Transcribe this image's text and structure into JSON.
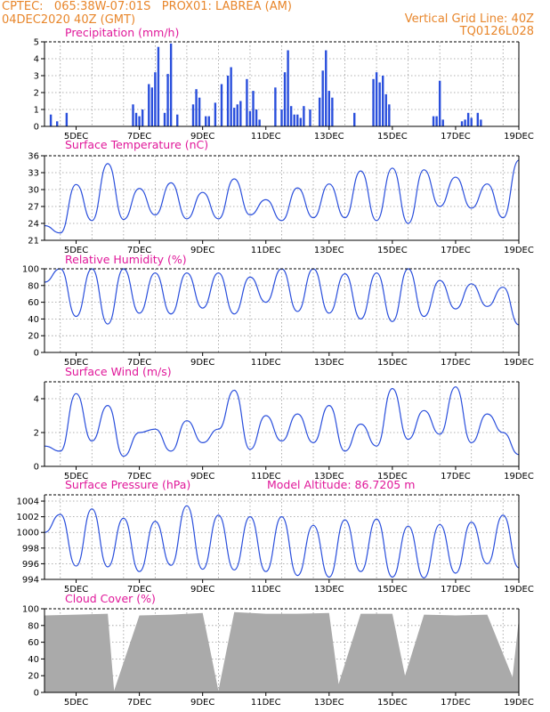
{
  "header": {
    "left_line1": "CPTEC:   065:38W-07:01S   PROX01: LABREA (AM)",
    "left_line2": "04DEC2020 40Z (GMT)",
    "right_line1": "Vertical Grid Line: 40Z",
    "right_line2": "TQ0126L028"
  },
  "colors": {
    "series": "#2a4fdc",
    "cloud": "#aaaaaa",
    "title": "#e0189a",
    "header": "#e8862b"
  },
  "x_tick_labels": [
    "5DEC",
    "7DEC",
    "9DEC",
    "11DEC",
    "13DEC",
    "15DEC",
    "17DEC",
    "19DEC"
  ],
  "chart_data": [
    {
      "id": "precip",
      "type": "bar",
      "title": "Precipitation (mm/h)",
      "ylim": [
        0,
        5
      ],
      "yticks": [
        0,
        1,
        2,
        3,
        4,
        5
      ],
      "x": [
        4.2,
        4.4,
        4.7,
        6.8,
        6.9,
        7.0,
        7.1,
        7.3,
        7.4,
        7.5,
        7.6,
        7.8,
        7.9,
        8.0,
        8.2,
        8.7,
        8.8,
        8.9,
        9.1,
        9.2,
        9.4,
        9.6,
        9.8,
        9.9,
        10.0,
        10.1,
        10.2,
        10.4,
        10.5,
        10.6,
        10.7,
        10.8,
        11.3,
        11.5,
        11.6,
        11.7,
        11.8,
        11.9,
        12.0,
        12.1,
        12.2,
        12.4,
        12.7,
        12.8,
        12.9,
        13.0,
        13.1,
        13.8,
        14.4,
        14.5,
        14.6,
        14.7,
        14.8,
        14.9,
        16.3,
        16.4,
        16.5,
        16.6,
        17.2,
        17.3,
        17.4,
        17.5,
        17.7,
        17.8
      ],
      "values": [
        0.7,
        0.3,
        0.8,
        1.3,
        0.8,
        0.6,
        1.0,
        2.5,
        2.3,
        3.2,
        4.7,
        0.8,
        3.1,
        4.9,
        0.7,
        1.3,
        2.2,
        1.7,
        0.6,
        0.6,
        1.4,
        2.5,
        3.0,
        3.5,
        1.1,
        1.3,
        1.5,
        2.8,
        0.9,
        2.1,
        1.0,
        0.4,
        2.3,
        1.0,
        3.2,
        4.5,
        1.2,
        0.7,
        0.7,
        0.5,
        1.2,
        1.0,
        1.7,
        3.3,
        4.5,
        2.1,
        1.7,
        0.8,
        2.8,
        3.2,
        2.6,
        3.0,
        1.9,
        1.3,
        0.6,
        0.6,
        2.7,
        0.4,
        0.3,
        0.4,
        0.8,
        0.5,
        0.8,
        0.4
      ],
      "grid": true
    },
    {
      "id": "temp",
      "type": "line",
      "title": "Surface Temperature (nC)",
      "ylim": [
        21,
        36
      ],
      "yticks": [
        21,
        24,
        27,
        30,
        33,
        36
      ],
      "x": [
        4.0,
        4.5,
        5.0,
        5.5,
        6.0,
        6.5,
        7.0,
        7.5,
        8.0,
        8.5,
        9.0,
        9.5,
        10.0,
        10.5,
        11.0,
        11.5,
        12.0,
        12.5,
        13.0,
        13.5,
        14.0,
        14.5,
        15.0,
        15.5,
        16.0,
        16.5,
        17.0,
        17.5,
        18.0,
        18.5,
        19.0
      ],
      "values": [
        23.6,
        22.3,
        30.9,
        24.5,
        34.6,
        24.7,
        30.2,
        25.5,
        31.2,
        24.8,
        29.5,
        24.8,
        31.9,
        25.5,
        28.2,
        24.5,
        30.3,
        25.0,
        31.0,
        25.0,
        33.3,
        24.5,
        33.8,
        24.0,
        33.5,
        27.0,
        32.2,
        26.7,
        31.0,
        25.0,
        35.2
      ],
      "grid": true
    },
    {
      "id": "rh",
      "type": "line",
      "title": "Relative Humidity (%)",
      "ylim": [
        0,
        100
      ],
      "yticks": [
        0,
        20,
        40,
        60,
        80,
        100
      ],
      "x": [
        4.0,
        4.5,
        5.0,
        5.5,
        6.0,
        6.5,
        7.0,
        7.5,
        8.0,
        8.5,
        9.0,
        9.5,
        10.0,
        10.5,
        11.0,
        11.5,
        12.0,
        12.5,
        13.0,
        13.5,
        14.0,
        14.5,
        15.0,
        15.5,
        16.0,
        16.5,
        17.0,
        17.5,
        18.0,
        18.5,
        19.0
      ],
      "values": [
        84,
        100,
        43,
        100,
        34,
        100,
        47,
        95,
        46,
        95,
        53,
        95,
        46,
        90,
        60,
        100,
        49,
        100,
        47,
        94,
        40,
        95,
        37,
        100,
        43,
        86,
        52,
        82,
        55,
        78,
        33
      ],
      "grid": true
    },
    {
      "id": "wind",
      "type": "line",
      "title": "Surface Wind (m/s)",
      "ylim": [
        0,
        5
      ],
      "yticks": [
        0,
        2,
        4
      ],
      "x": [
        4.0,
        4.5,
        5.0,
        5.5,
        6.0,
        6.5,
        7.0,
        7.5,
        8.0,
        8.5,
        9.0,
        9.5,
        10.0,
        10.5,
        11.0,
        11.5,
        12.0,
        12.5,
        13.0,
        13.5,
        14.0,
        14.5,
        15.0,
        15.5,
        16.0,
        16.5,
        17.0,
        17.5,
        18.0,
        18.5,
        19.0
      ],
      "values": [
        1.2,
        0.9,
        4.3,
        1.5,
        3.6,
        0.6,
        2.0,
        2.2,
        0.9,
        2.7,
        1.4,
        2.2,
        4.5,
        1.0,
        3.0,
        1.5,
        3.1,
        1.4,
        3.6,
        0.9,
        2.5,
        1.2,
        4.6,
        1.6,
        3.3,
        1.9,
        4.7,
        1.4,
        3.1,
        2.0,
        0.7
      ],
      "grid": true
    },
    {
      "id": "pres",
      "type": "line",
      "title": "Surface Pressure (hPa)",
      "annotation": "Model Altitude: 86.7205 m",
      "ylim": [
        994,
        1004.8
      ],
      "yticks": [
        994,
        996,
        998,
        1000,
        1002,
        1004
      ],
      "x": [
        4.0,
        4.5,
        5.0,
        5.5,
        6.0,
        6.5,
        7.0,
        7.5,
        8.0,
        8.5,
        9.0,
        9.5,
        10.0,
        10.5,
        11.0,
        11.5,
        12.0,
        12.5,
        13.0,
        13.5,
        14.0,
        14.5,
        15.0,
        15.5,
        16.0,
        16.5,
        17.0,
        17.5,
        18.0,
        18.5,
        19.0
      ],
      "values": [
        1000.0,
        1002.3,
        995.7,
        1003.0,
        995.6,
        1001.8,
        995.0,
        1001.4,
        995.8,
        1003.4,
        995.3,
        1002.2,
        995.2,
        1002.0,
        995.0,
        1002.0,
        994.5,
        1000.9,
        994.3,
        1001.6,
        995.0,
        1001.7,
        994.3,
        1000.8,
        994.2,
        1001.0,
        994.8,
        1001.3,
        996.0,
        1002.2,
        995.5
      ],
      "grid": true
    },
    {
      "id": "cloud",
      "type": "area",
      "title": "Cloud Cover (%)",
      "ylim": [
        0,
        100
      ],
      "yticks": [
        0,
        20,
        40,
        60,
        80,
        100
      ],
      "x": [
        4.0,
        5.0,
        6.0,
        6.2,
        7.0,
        8.0,
        9.0,
        9.5,
        10.0,
        11.0,
        12.0,
        13.0,
        13.3,
        14.0,
        15.0,
        15.4,
        16.0,
        17.0,
        18.0,
        18.8,
        19.0
      ],
      "values": [
        92,
        93,
        94,
        2,
        92,
        93,
        95,
        2,
        96,
        94,
        94,
        95,
        10,
        94,
        94,
        20,
        93,
        92,
        93,
        18,
        88
      ],
      "grid": true
    }
  ]
}
